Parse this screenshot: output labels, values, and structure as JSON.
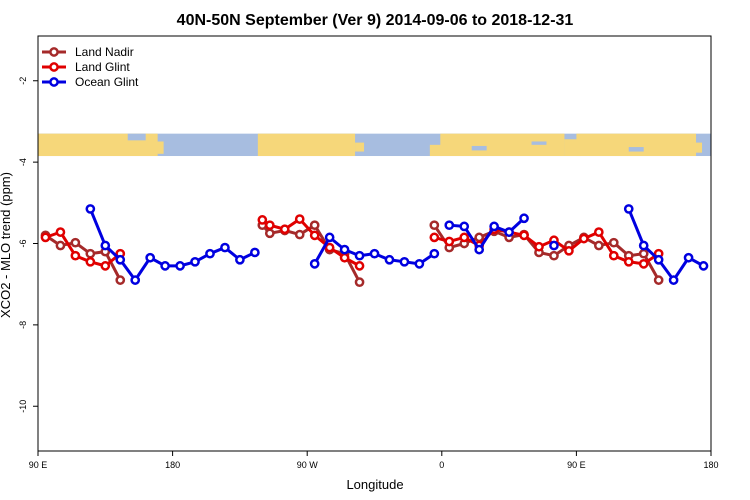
{
  "chart_data": {
    "type": "line",
    "title": "40N-50N September (Ver 9)   2014-09-06 to 2018-12-31",
    "xlabel": "Longitude",
    "ylabel": "XCO2 - MLO trend (ppm)",
    "xlim": [
      0,
      450
    ],
    "ylim": [
      -11.1,
      -0.9
    ],
    "x_ticks": [
      {
        "value": 0,
        "label": "90 E"
      },
      {
        "value": 90,
        "label": "180"
      },
      {
        "value": 180,
        "label": "90 W"
      },
      {
        "value": 270,
        "label": "0"
      },
      {
        "value": 360,
        "label": "90 E"
      },
      {
        "value": 450,
        "label": "180"
      }
    ],
    "y_ticks": [
      {
        "value": -2,
        "label": "-2"
      },
      {
        "value": -4,
        "label": "-4"
      },
      {
        "value": -6,
        "label": "-6"
      },
      {
        "value": -8,
        "label": "-8"
      },
      {
        "value": -10,
        "label": "-10"
      }
    ],
    "map_band": {
      "y_top": -3.3,
      "y_bottom": -3.85,
      "land_color": "#f6d77a",
      "ocean_color": "#a7bde0"
    },
    "legend_position": "top-left",
    "series": [
      {
        "name": "Land Nadir",
        "color": "#a52a2a",
        "segments": [
          [
            [
              5,
              -5.8
            ],
            [
              15,
              -6.05
            ],
            [
              25,
              -5.98
            ],
            [
              35,
              -6.25
            ],
            [
              45,
              -6.2
            ],
            [
              55,
              -6.9
            ]
          ],
          [
            [
              150,
              -5.55
            ],
            [
              155,
              -5.75
            ],
            [
              165,
              -5.68
            ],
            [
              175,
              -5.78
            ],
            [
              185,
              -5.55
            ],
            [
              195,
              -6.15
            ],
            [
              205,
              -6.25
            ],
            [
              215,
              -6.95
            ]
          ],
          [
            [
              265,
              -5.55
            ],
            [
              275,
              -6.1
            ],
            [
              285,
              -6.0
            ],
            [
              295,
              -5.85
            ],
            [
              305,
              -5.7
            ],
            [
              315,
              -5.85
            ],
            [
              325,
              -5.78
            ],
            [
              335,
              -6.22
            ],
            [
              345,
              -6.3
            ],
            [
              355,
              -6.05
            ],
            [
              365,
              -5.85
            ],
            [
              375,
              -6.05
            ],
            [
              385,
              -5.98
            ],
            [
              395,
              -6.3
            ],
            [
              405,
              -6.25
            ],
            [
              415,
              -6.9
            ]
          ]
        ]
      },
      {
        "name": "Land Glint",
        "color": "#e00000",
        "segments": [
          [
            [
              5,
              -5.85
            ],
            [
              15,
              -5.72
            ],
            [
              25,
              -6.3
            ],
            [
              35,
              -6.45
            ],
            [
              45,
              -6.55
            ],
            [
              55,
              -6.25
            ]
          ],
          [
            [
              150,
              -5.42
            ],
            [
              155,
              -5.55
            ],
            [
              165,
              -5.65
            ],
            [
              175,
              -5.4
            ],
            [
              185,
              -5.8
            ],
            [
              195,
              -6.1
            ],
            [
              205,
              -6.35
            ],
            [
              215,
              -6.55
            ]
          ],
          [
            [
              265,
              -5.85
            ],
            [
              275,
              -5.95
            ],
            [
              285,
              -5.85
            ],
            [
              295,
              -6.05
            ],
            [
              305,
              -5.65
            ],
            [
              315,
              -5.72
            ],
            [
              325,
              -5.8
            ],
            [
              335,
              -6.08
            ],
            [
              345,
              -5.92
            ],
            [
              355,
              -6.18
            ],
            [
              365,
              -5.88
            ],
            [
              375,
              -5.72
            ],
            [
              385,
              -6.3
            ],
            [
              395,
              -6.45
            ],
            [
              405,
              -6.5
            ],
            [
              415,
              -6.25
            ]
          ]
        ]
      },
      {
        "name": "Ocean Glint",
        "color": "#0000e0",
        "segments": [
          [
            [
              35,
              -5.15
            ],
            [
              45,
              -6.05
            ],
            [
              55,
              -6.4
            ],
            [
              65,
              -6.9
            ],
            [
              75,
              -6.35
            ],
            [
              85,
              -6.55
            ],
            [
              95,
              -6.55
            ],
            [
              105,
              -6.45
            ],
            [
              115,
              -6.25
            ],
            [
              125,
              -6.1
            ],
            [
              135,
              -6.4
            ],
            [
              145,
              -6.22
            ]
          ],
          [
            [
              185,
              -6.5
            ],
            [
              195,
              -5.85
            ],
            [
              205,
              -6.15
            ],
            [
              215,
              -6.3
            ],
            [
              225,
              -6.25
            ],
            [
              235,
              -6.4
            ],
            [
              245,
              -6.45
            ],
            [
              255,
              -6.5
            ],
            [
              265,
              -6.25
            ]
          ],
          [
            [
              275,
              -5.55
            ],
            [
              285,
              -5.58
            ],
            [
              295,
              -6.15
            ],
            [
              305,
              -5.58
            ],
            [
              315,
              -5.72
            ],
            [
              325,
              -5.38
            ]
          ],
          [
            [
              345,
              -6.05
            ]
          ],
          [
            [
              395,
              -5.15
            ],
            [
              405,
              -6.05
            ],
            [
              415,
              -6.4
            ],
            [
              425,
              -6.9
            ],
            [
              435,
              -6.35
            ],
            [
              445,
              -6.55
            ]
          ]
        ]
      }
    ]
  }
}
